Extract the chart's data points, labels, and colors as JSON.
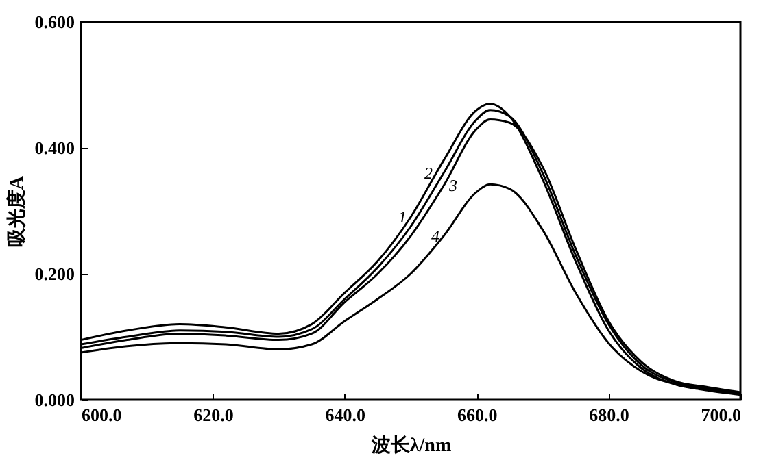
{
  "chart_data": {
    "type": "line",
    "xlabel": "波长λ/nm",
    "ylabel": "吸光度A",
    "x": [
      600,
      607,
      615,
      622,
      630,
      635,
      640,
      645,
      650,
      655,
      660,
      662,
      665,
      670,
      675,
      680,
      685,
      690,
      695,
      700
    ],
    "xlim": [
      600,
      700
    ],
    "ylim": [
      0,
      0.6
    ],
    "xticks": [
      {
        "value": 600,
        "label": "600.0"
      },
      {
        "value": 620,
        "label": "620.0"
      },
      {
        "value": 640,
        "label": "640.0"
      },
      {
        "value": 660,
        "label": "660.0"
      },
      {
        "value": 680,
        "label": "680.0"
      },
      {
        "value": 700,
        "label": "700.0"
      }
    ],
    "yticks": [
      {
        "value": 0,
        "label": "0.000"
      },
      {
        "value": 0.2,
        "label": "0.200"
      },
      {
        "value": 0.4,
        "label": "0.400"
      },
      {
        "value": 0.6,
        "label": "0.600"
      }
    ],
    "grid": false,
    "legend": false,
    "marker": "none",
    "line_style": "solid",
    "series": [
      {
        "name": "1",
        "color": "#000000",
        "values": [
          0.095,
          0.11,
          0.12,
          0.115,
          0.105,
          0.12,
          0.17,
          0.22,
          0.29,
          0.38,
          0.46,
          0.47,
          0.45,
          0.35,
          0.22,
          0.11,
          0.05,
          0.025,
          0.015,
          0.008
        ]
      },
      {
        "name": "2",
        "color": "#000000",
        "values": [
          0.088,
          0.1,
          0.11,
          0.108,
          0.1,
          0.112,
          0.16,
          0.21,
          0.275,
          0.36,
          0.445,
          0.46,
          0.45,
          0.36,
          0.23,
          0.12,
          0.055,
          0.028,
          0.018,
          0.01
        ]
      },
      {
        "name": "3",
        "color": "#000000",
        "values": [
          0.082,
          0.095,
          0.105,
          0.102,
          0.095,
          0.105,
          0.155,
          0.2,
          0.26,
          0.34,
          0.43,
          0.445,
          0.44,
          0.37,
          0.24,
          0.125,
          0.06,
          0.03,
          0.02,
          0.012
        ]
      },
      {
        "name": "4",
        "color": "#000000",
        "values": [
          0.075,
          0.085,
          0.09,
          0.088,
          0.08,
          0.088,
          0.125,
          0.16,
          0.2,
          0.26,
          0.33,
          0.342,
          0.335,
          0.27,
          0.17,
          0.09,
          0.045,
          0.025,
          0.016,
          0.01
        ]
      }
    ]
  }
}
